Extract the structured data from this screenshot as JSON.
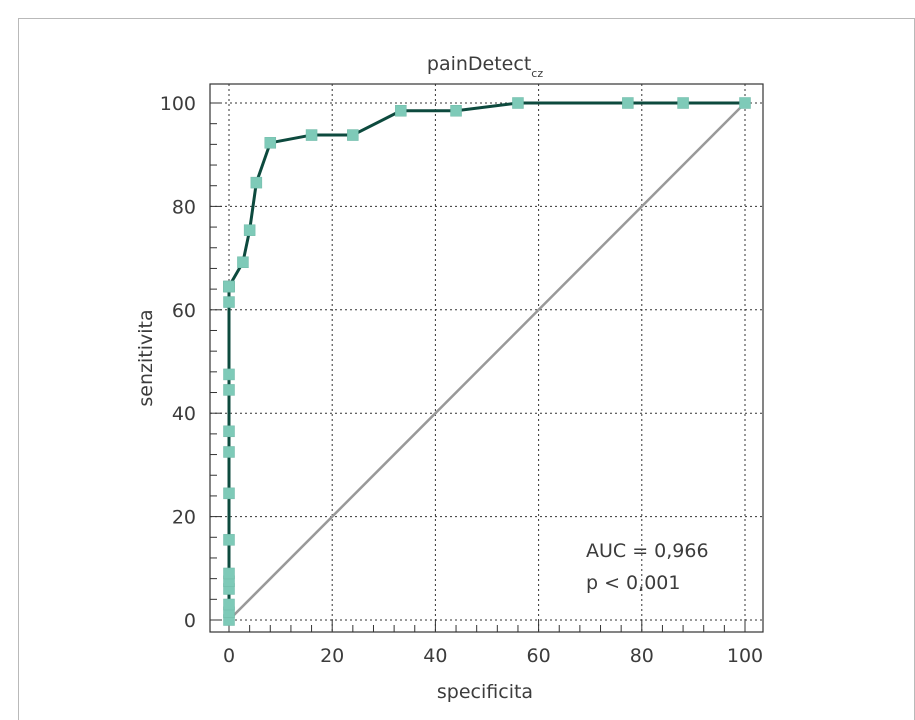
{
  "chart_data": {
    "type": "line",
    "title": "painDetect",
    "title_subscript": "cz",
    "xlabel": "specificita",
    "ylabel": "senzitivita",
    "xlim": [
      0,
      100
    ],
    "ylim": [
      0,
      100
    ],
    "x_ticks": [
      "0",
      "20",
      "40",
      "60",
      "80",
      "100"
    ],
    "y_ticks": [
      "0",
      "20",
      "40",
      "60",
      "80",
      "100"
    ],
    "grid": true,
    "series": [
      {
        "color": "#0d4a3e",
        "marker_color": "#7ecab8",
        "x": [
          0,
          0,
          0,
          0,
          0,
          0,
          0,
          0,
          0,
          0,
          0,
          0,
          0,
          0,
          0,
          0,
          2.7,
          4,
          5.3,
          8,
          16,
          24,
          33.3,
          44,
          56,
          77.3,
          88,
          100
        ],
        "y": [
          0,
          1.5,
          3,
          6,
          7.5,
          9,
          15.5,
          24.5,
          32.5,
          36.5,
          44.5,
          47.5,
          61.5,
          64.5,
          64.5,
          64.5,
          69.2,
          75.4,
          84.6,
          92.3,
          93.8,
          93.8,
          98.5,
          98.5,
          100,
          100,
          100,
          100
        ]
      },
      {
        "color": "#999999",
        "x": [
          0,
          100
        ],
        "y": [
          0,
          100
        ]
      }
    ],
    "annotations": [
      "AUC = 0,966",
      "p < 0,001"
    ]
  }
}
